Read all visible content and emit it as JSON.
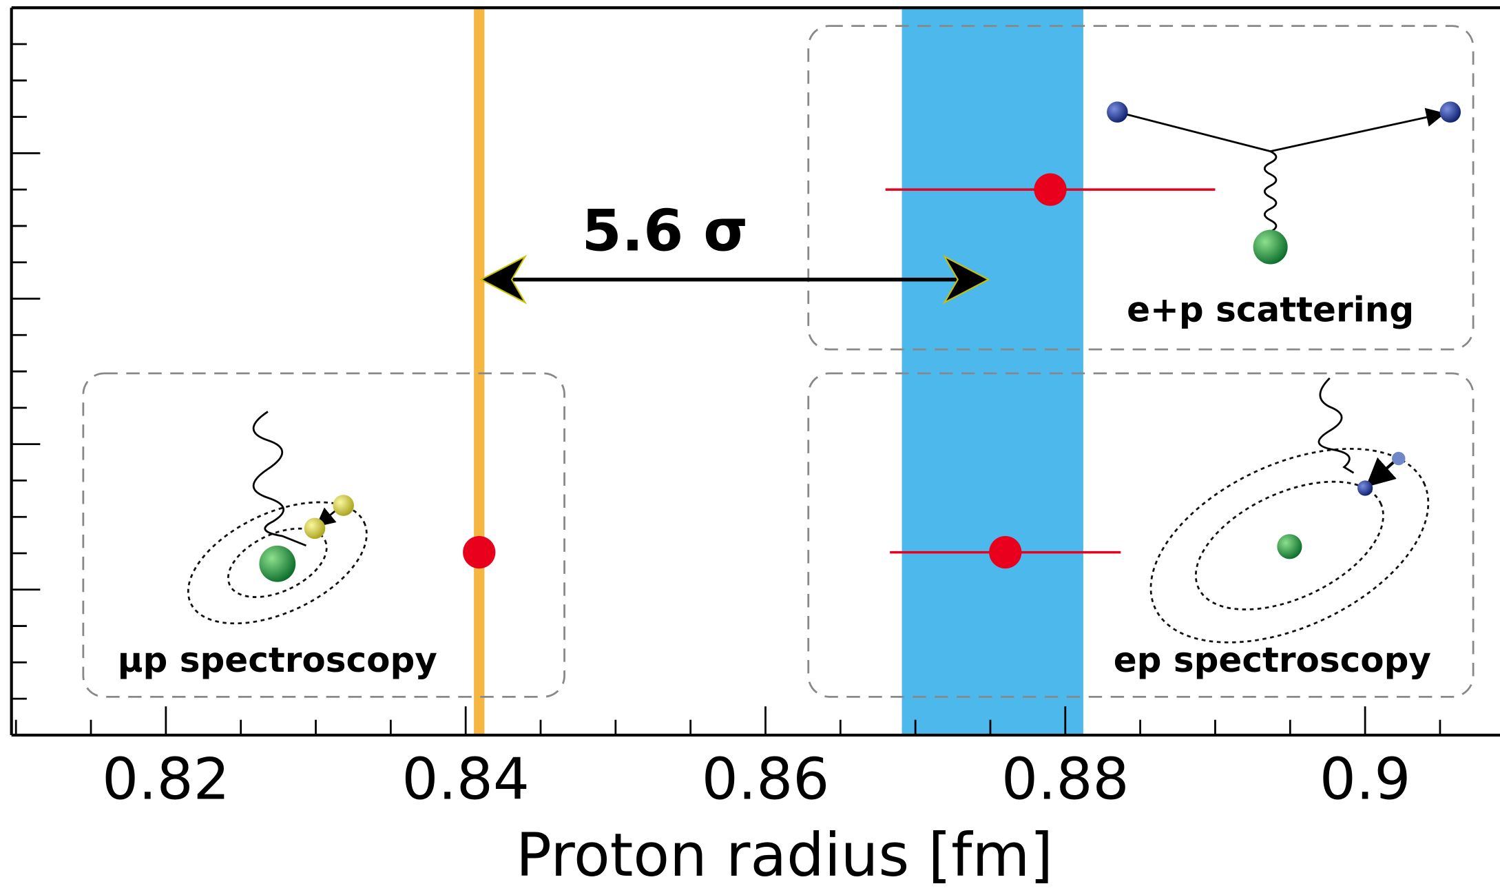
{
  "chart_data": {
    "type": "errorbar",
    "xlabel": "Proton radius [fm]",
    "xlim": [
      0.8097,
      0.909
    ],
    "xticks": [
      0.82,
      0.84,
      0.86,
      0.88,
      0.9
    ],
    "series": [
      {
        "name": "μp spectroscopy",
        "color": "#e8001c",
        "values": [
          0.8409
        ]
      },
      {
        "name": "e+p scattering",
        "color": "#e8001c",
        "values": [
          0.879
        ],
        "errors": [
          0.011
        ]
      },
      {
        "name": "ep spectroscopy",
        "color": "#e8001c",
        "values": [
          0.876
        ],
        "errors": [
          0.0077
        ]
      }
    ],
    "reference_line": {
      "value": 0.8409,
      "color": "#f5b642"
    },
    "band": {
      "range": [
        0.8691,
        0.8812
      ],
      "color": "#4db8ec"
    },
    "annotation": {
      "text": "5.6 σ",
      "from": 0.8409,
      "to": 0.875
    }
  }
}
